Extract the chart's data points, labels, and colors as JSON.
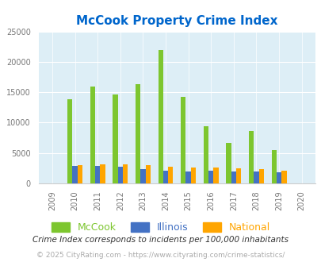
{
  "title": "McCook Property Crime Index",
  "years": [
    2009,
    2010,
    2011,
    2012,
    2013,
    2014,
    2015,
    2016,
    2017,
    2018,
    2019,
    2020
  ],
  "mccook": [
    0,
    13900,
    15900,
    14600,
    16300,
    21900,
    14300,
    9400,
    6600,
    8600,
    5500,
    0
  ],
  "illinois": [
    0,
    2900,
    2900,
    2750,
    2400,
    2100,
    1900,
    2100,
    1950,
    1950,
    1800,
    0
  ],
  "national": [
    0,
    3050,
    3100,
    3100,
    2950,
    2700,
    2550,
    2550,
    2450,
    2350,
    2150,
    0
  ],
  "mccook_color": "#7dc62f",
  "illinois_color": "#4472c4",
  "national_color": "#ffa500",
  "plot_bg_color": "#ddeef6",
  "title_color": "#0066cc",
  "ylim": [
    0,
    25000
  ],
  "yticks": [
    0,
    5000,
    10000,
    15000,
    20000,
    25000
  ],
  "footnote1": "Crime Index corresponds to incidents per 100,000 inhabitants",
  "footnote2": "© 2025 CityRating.com - https://www.cityrating.com/crime-statistics/",
  "legend_labels": [
    "McCook",
    "Illinois",
    "National"
  ],
  "legend_colors": [
    "#7dc62f",
    "#4472c4",
    "#ffa500"
  ]
}
